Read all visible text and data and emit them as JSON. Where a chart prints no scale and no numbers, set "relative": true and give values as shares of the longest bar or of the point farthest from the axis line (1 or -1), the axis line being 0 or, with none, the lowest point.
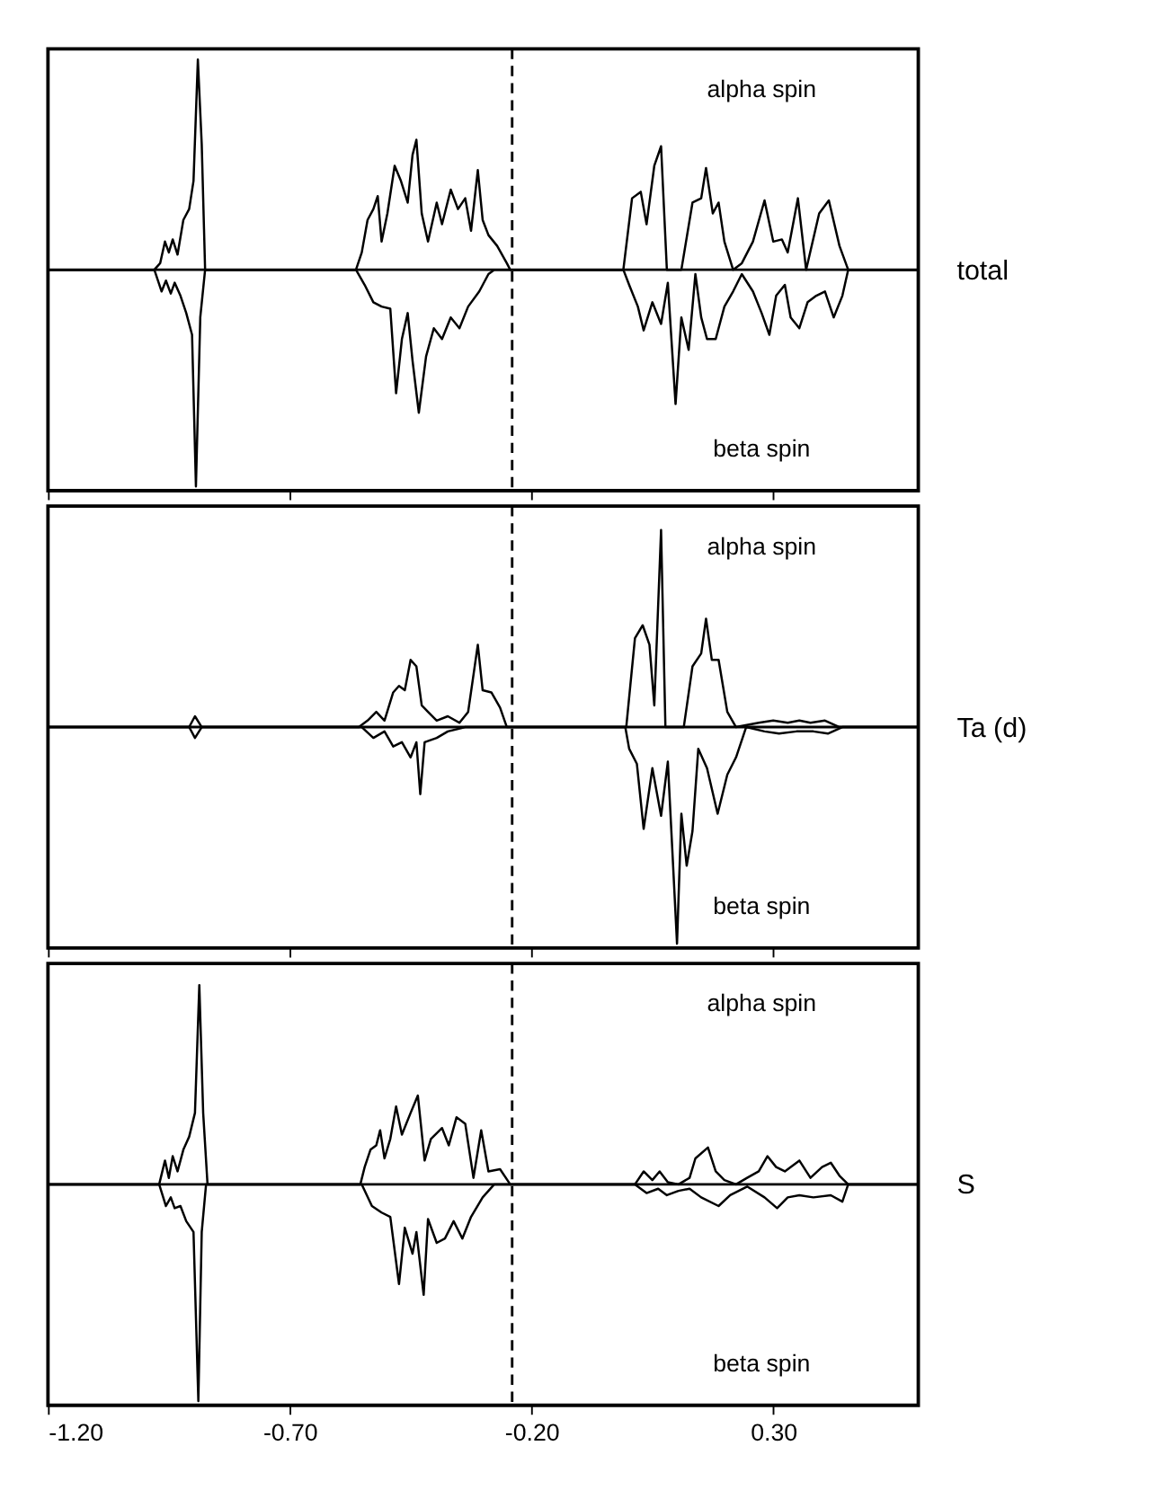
{
  "chart_data": [
    {
      "type": "line",
      "ylabel": "total",
      "relative": true,
      "xlim": [
        -1.2,
        0.6
      ],
      "xticks": [
        -1.2,
        -0.7,
        -0.2,
        0.3
      ],
      "tick_labels": false,
      "grid": false,
      "legend": false,
      "line_style": "solid",
      "annotations": [
        "alpha spin",
        "beta spin"
      ],
      "ref_lines": [
        {
          "axis": "x",
          "value": -0.24,
          "line_style": "dashed",
          "color": "#000000"
        },
        {
          "axis": "y",
          "value": 0,
          "color": "#000000"
        }
      ],
      "series": [
        {
          "color": "#000000",
          "x": [
            -1.2,
            -0.98,
            -0.968,
            -0.958,
            -0.95,
            -0.942,
            -0.932,
            -0.92,
            -0.908,
            -0.899,
            -0.89,
            -0.882,
            -0.875,
            -0.563,
            -0.551,
            -0.539,
            -0.527,
            -0.518,
            -0.51,
            -0.498,
            -0.483,
            -0.47,
            -0.456,
            -0.446,
            -0.438,
            -0.427,
            -0.414,
            -0.396,
            -0.385,
            -0.367,
            -0.352,
            -0.337,
            -0.325,
            -0.311,
            -0.301,
            -0.289,
            -0.271,
            -0.251,
            -0.244,
            -0.01,
            0.008,
            0.026,
            0.038,
            0.054,
            0.068,
            0.08,
            0.11,
            0.133,
            0.151,
            0.161,
            0.175,
            0.187,
            0.199,
            0.217,
            0.235,
            0.258,
            0.282,
            0.3,
            0.318,
            0.33,
            0.351,
            0.368,
            0.395,
            0.415,
            0.437,
            0.455,
            0.6
          ],
          "values": [
            0,
            0,
            0.03,
            0.13,
            0.08,
            0.14,
            0.07,
            0.23,
            0.28,
            0.41,
            0.97,
            0.58,
            0,
            0,
            0.08,
            0.23,
            0.28,
            0.34,
            0.13,
            0.26,
            0.48,
            0.41,
            0.31,
            0.53,
            0.6,
            0.26,
            0.13,
            0.31,
            0.21,
            0.37,
            0.28,
            0.33,
            0.18,
            0.46,
            0.23,
            0.16,
            0.11,
            0.03,
            0,
            0,
            0.33,
            0.36,
            0.21,
            0.48,
            0.57,
            0,
            0,
            0.31,
            0.33,
            0.47,
            0.26,
            0.31,
            0.13,
            0,
            0.03,
            0.13,
            0.32,
            0.13,
            0.14,
            0.08,
            0.33,
            0,
            0.26,
            0.32,
            0.11,
            0,
            0
          ]
        },
        {
          "color": "#000000",
          "x": [
            -1.2,
            -0.98,
            -0.965,
            -0.956,
            -0.946,
            -0.938,
            -0.926,
            -0.914,
            -0.902,
            -0.894,
            -0.885,
            -0.875,
            -0.563,
            -0.545,
            -0.527,
            -0.51,
            -0.492,
            -0.48,
            -0.468,
            -0.456,
            -0.446,
            -0.433,
            -0.418,
            -0.402,
            -0.385,
            -0.367,
            -0.349,
            -0.331,
            -0.308,
            -0.289,
            -0.277,
            -0.01,
            0.002,
            0.02,
            0.032,
            0.05,
            0.068,
            0.082,
            0.098,
            0.11,
            0.125,
            0.139,
            0.151,
            0.163,
            0.181,
            0.199,
            0.217,
            0.235,
            0.258,
            0.276,
            0.292,
            0.306,
            0.324,
            0.336,
            0.354,
            0.371,
            0.389,
            0.407,
            0.425,
            0.443,
            0.455,
            0.6
          ],
          "values": [
            0,
            0,
            -0.1,
            -0.05,
            -0.11,
            -0.06,
            -0.12,
            -0.2,
            -0.3,
            -1.0,
            -0.22,
            0,
            0,
            -0.07,
            -0.15,
            -0.17,
            -0.18,
            -0.57,
            -0.32,
            -0.2,
            -0.42,
            -0.66,
            -0.4,
            -0.27,
            -0.32,
            -0.22,
            -0.27,
            -0.17,
            -0.1,
            -0.02,
            0,
            0,
            -0.07,
            -0.17,
            -0.28,
            -0.15,
            -0.25,
            -0.06,
            -0.62,
            -0.22,
            -0.37,
            -0.02,
            -0.22,
            -0.32,
            -0.32,
            -0.17,
            -0.1,
            -0.02,
            -0.1,
            -0.2,
            -0.3,
            -0.12,
            -0.07,
            -0.22,
            -0.27,
            -0.15,
            -0.12,
            -0.1,
            -0.22,
            -0.12,
            0,
            0
          ]
        }
      ]
    },
    {
      "type": "line",
      "ylabel": "Ta (d)",
      "relative": true,
      "xlim": [
        -1.2,
        0.6
      ],
      "xticks": [
        -1.2,
        -0.7,
        -0.2,
        0.3
      ],
      "tick_labels": false,
      "grid": false,
      "legend": false,
      "line_style": "solid",
      "annotations": [
        "alpha spin",
        "beta spin"
      ],
      "ref_lines": [
        {
          "axis": "x",
          "value": -0.24,
          "line_style": "dashed",
          "color": "#000000"
        },
        {
          "axis": "y",
          "value": 0,
          "color": "#000000"
        }
      ],
      "series": [
        {
          "color": "#000000",
          "x": [
            -1.2,
            -0.908,
            -0.896,
            -0.882,
            -0.557,
            -0.539,
            -0.521,
            -0.504,
            -0.486,
            -0.474,
            -0.462,
            -0.45,
            -0.438,
            -0.427,
            -0.414,
            -0.396,
            -0.373,
            -0.349,
            -0.331,
            -0.32,
            -0.311,
            -0.301,
            -0.283,
            -0.265,
            -0.251,
            -0.004,
            0.014,
            0.03,
            0.044,
            0.054,
            0.068,
            0.077,
            0.115,
            0.133,
            0.151,
            0.161,
            0.173,
            0.187,
            0.205,
            0.223,
            0.27,
            0.3,
            0.33,
            0.354,
            0.377,
            0.407,
            0.437,
            0.6
          ],
          "values": [
            0,
            0,
            0.05,
            0,
            0,
            0.03,
            0.07,
            0.03,
            0.16,
            0.19,
            0.17,
            0.31,
            0.28,
            0.1,
            0.07,
            0.03,
            0.05,
            0.02,
            0.07,
            0.24,
            0.38,
            0.17,
            0.16,
            0.09,
            0,
            0,
            0.41,
            0.47,
            0.38,
            0.1,
            0.91,
            0,
            0,
            0.28,
            0.34,
            0.5,
            0.31,
            0.31,
            0.07,
            0,
            0.02,
            0.03,
            0.02,
            0.03,
            0.02,
            0.03,
            0,
            0
          ]
        },
        {
          "color": "#000000",
          "x": [
            -1.2,
            -0.908,
            -0.896,
            -0.882,
            -0.551,
            -0.527,
            -0.504,
            -0.486,
            -0.468,
            -0.45,
            -0.438,
            -0.43,
            -0.421,
            -0.396,
            -0.373,
            -0.337,
            -0.006,
            0.002,
            0.018,
            0.032,
            0.05,
            0.068,
            0.082,
            0.092,
            0.101,
            0.11,
            0.121,
            0.133,
            0.145,
            0.163,
            0.185,
            0.205,
            0.223,
            0.244,
            0.282,
            0.312,
            0.348,
            0.383,
            0.413,
            0.443,
            0.6
          ],
          "values": [
            0,
            0,
            -0.05,
            0,
            0,
            -0.05,
            -0.02,
            -0.09,
            -0.07,
            -0.14,
            -0.07,
            -0.31,
            -0.07,
            -0.05,
            -0.02,
            0,
            0,
            -0.1,
            -0.17,
            -0.47,
            -0.19,
            -0.41,
            -0.16,
            -0.6,
            -1,
            -0.4,
            -0.64,
            -0.48,
            -0.1,
            -0.19,
            -0.4,
            -0.22,
            -0.14,
            0,
            -0.02,
            -0.03,
            -0.02,
            -0.02,
            -0.03,
            0,
            0
          ]
        }
      ]
    },
    {
      "type": "line",
      "ylabel": "S",
      "relative": true,
      "xlim": [
        -1.2,
        0.6
      ],
      "xticks": [
        {
          "value": -1.2,
          "label": "-1.20"
        },
        {
          "value": -0.7,
          "label": "-0.70"
        },
        {
          "value": -0.2,
          "label": "-0.20"
        },
        {
          "value": 0.3,
          "label": "0.30"
        }
      ],
      "tick_labels": "x",
      "grid": false,
      "legend": false,
      "line_style": "solid",
      "annotations": [
        "alpha spin",
        "beta spin"
      ],
      "ref_lines": [
        {
          "axis": "x",
          "value": -0.24,
          "line_style": "dashed",
          "color": "#000000"
        },
        {
          "axis": "y",
          "value": 0,
          "color": "#000000"
        }
      ],
      "series": [
        {
          "color": "#000000",
          "x": [
            -1.2,
            -0.97,
            -0.958,
            -0.95,
            -0.942,
            -0.932,
            -0.92,
            -0.908,
            -0.896,
            -0.887,
            -0.879,
            -0.87,
            -0.554,
            -0.545,
            -0.533,
            -0.521,
            -0.513,
            -0.504,
            -0.492,
            -0.48,
            -0.468,
            -0.45,
            -0.435,
            -0.421,
            -0.408,
            -0.385,
            -0.371,
            -0.355,
            -0.337,
            -0.32,
            -0.304,
            -0.289,
            -0.265,
            -0.244,
            0.014,
            0.032,
            0.05,
            0.065,
            0.082,
            0.104,
            0.127,
            0.139,
            0.165,
            0.181,
            0.199,
            0.223,
            0.246,
            0.27,
            0.288,
            0.306,
            0.324,
            0.354,
            0.377,
            0.401,
            0.419,
            0.437,
            0.455,
            0.6
          ],
          "values": [
            0,
            0,
            0.11,
            0.03,
            0.13,
            0.06,
            0.16,
            0.22,
            0.33,
            0.92,
            0.33,
            0,
            0,
            0.08,
            0.16,
            0.18,
            0.25,
            0.12,
            0.21,
            0.36,
            0.23,
            0.33,
            0.41,
            0.11,
            0.21,
            0.26,
            0.18,
            0.31,
            0.28,
            0.03,
            0.25,
            0.06,
            0.07,
            0,
            0,
            0.06,
            0.02,
            0.06,
            0.01,
            0,
            0.03,
            0.12,
            0.17,
            0.06,
            0.02,
            0,
            0.03,
            0.06,
            0.13,
            0.08,
            0.06,
            0.11,
            0.03,
            0.08,
            0.1,
            0.04,
            0,
            0
          ]
        },
        {
          "color": "#000000",
          "x": [
            -1.2,
            -0.97,
            -0.956,
            -0.946,
            -0.938,
            -0.926,
            -0.914,
            -0.899,
            -0.889,
            -0.882,
            -0.873,
            -0.551,
            -0.53,
            -0.51,
            -0.492,
            -0.474,
            -0.462,
            -0.446,
            -0.438,
            -0.423,
            -0.414,
            -0.396,
            -0.379,
            -0.361,
            -0.343,
            -0.325,
            -0.301,
            -0.277,
            0.014,
            0.038,
            0.062,
            0.08,
            0.104,
            0.127,
            0.151,
            0.187,
            0.211,
            0.246,
            0.282,
            0.308,
            0.33,
            0.354,
            0.383,
            0.419,
            0.443,
            0.455,
            0.6
          ],
          "values": [
            0,
            0,
            -0.1,
            -0.06,
            -0.11,
            -0.1,
            -0.17,
            -0.22,
            -1,
            -0.22,
            0,
            0,
            -0.1,
            -0.13,
            -0.15,
            -0.46,
            -0.2,
            -0.32,
            -0.22,
            -0.51,
            -0.16,
            -0.27,
            -0.25,
            -0.17,
            -0.25,
            -0.15,
            -0.06,
            0,
            0,
            -0.04,
            -0.02,
            -0.05,
            -0.03,
            -0.02,
            -0.06,
            -0.1,
            -0.05,
            -0.01,
            -0.06,
            -0.11,
            -0.06,
            -0.05,
            -0.06,
            -0.05,
            -0.08,
            0,
            0
          ]
        }
      ]
    }
  ]
}
